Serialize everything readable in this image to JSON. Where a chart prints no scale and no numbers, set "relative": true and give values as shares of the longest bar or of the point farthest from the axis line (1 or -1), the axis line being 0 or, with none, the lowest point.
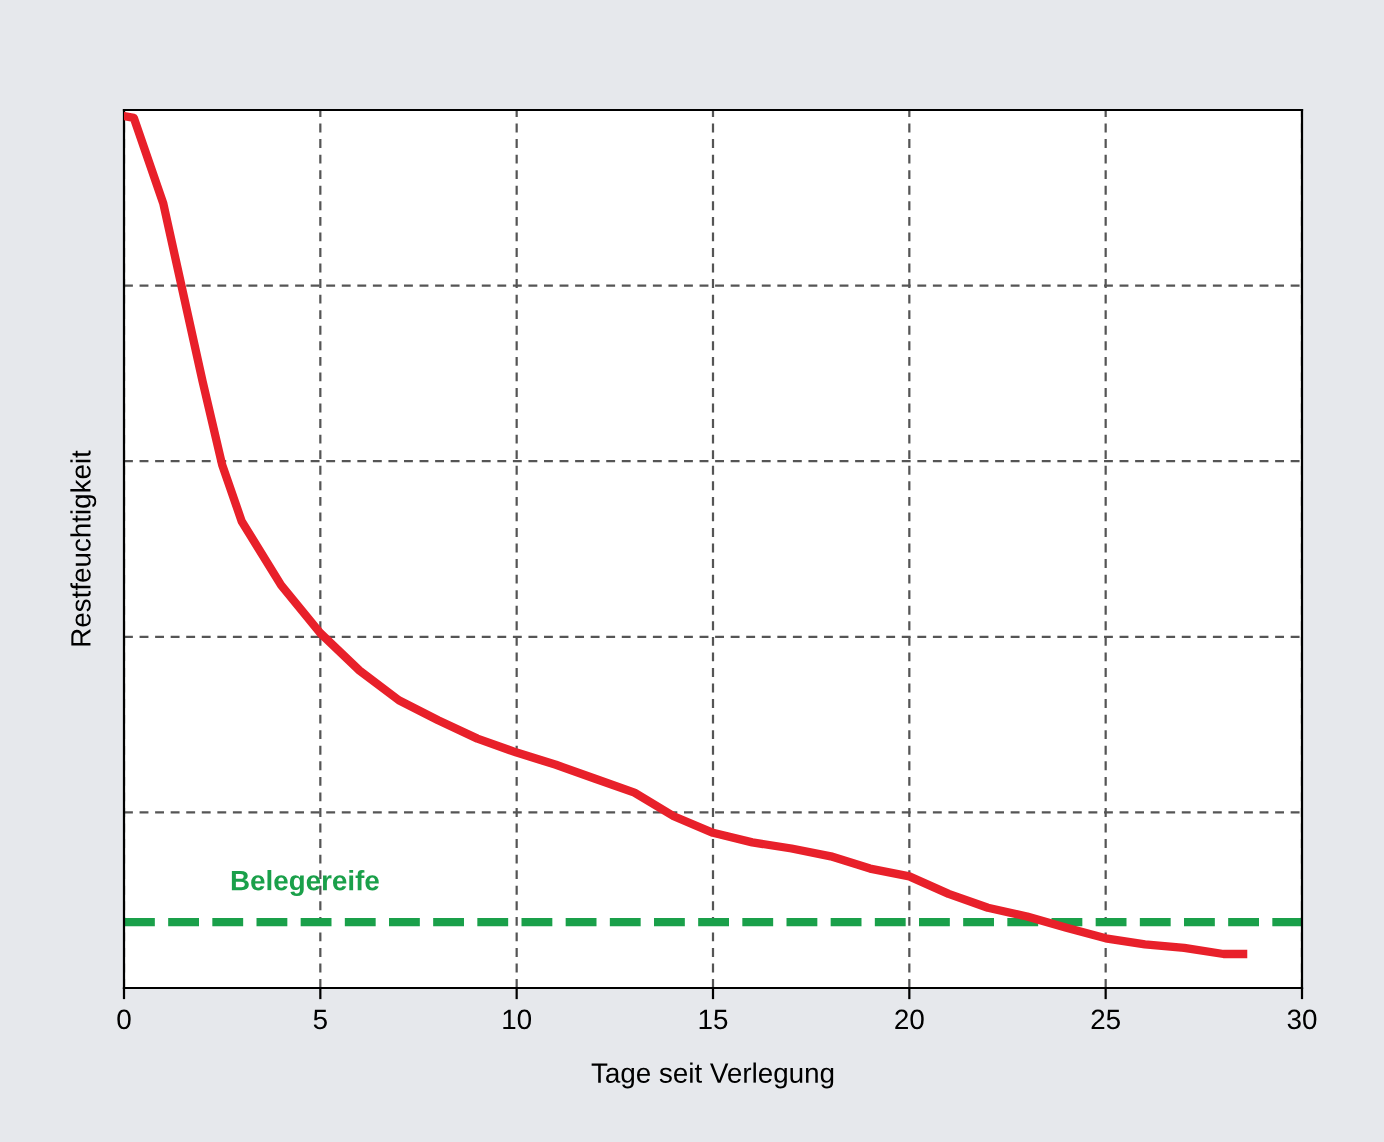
{
  "chart_data": {
    "type": "line",
    "xlabel": "Tage seit Verlegung",
    "ylabel": "Restfeuchtigkeit",
    "relative": true,
    "x": [
      0,
      0.25,
      1,
      2,
      2.5,
      3,
      4,
      5,
      6,
      7,
      8,
      9,
      10,
      11,
      12,
      13,
      14,
      15,
      16,
      17,
      18,
      19,
      20,
      21,
      22,
      23,
      24,
      25,
      26,
      27,
      28,
      28.5
    ],
    "series": [
      {
        "color": "#e8202a",
        "values": [
          1.0,
          0.998,
          0.9,
          0.696,
          0.6,
          0.535,
          0.462,
          0.407,
          0.364,
          0.33,
          0.307,
          0.286,
          0.27,
          0.256,
          0.24,
          0.224,
          0.197,
          0.178,
          0.167,
          0.16,
          0.151,
          0.137,
          0.128,
          0.108,
          0.092,
          0.082,
          0.069,
          0.057,
          0.05,
          0.046,
          0.039,
          0.039
        ]
      }
    ],
    "xlim": [
      0,
      30
    ],
    "xticks": [
      0,
      5,
      10,
      15,
      20,
      25,
      30
    ],
    "ref_lines": [
      {
        "axis": "y",
        "value": 0.0755,
        "label": "Belegereife",
        "color": "#1aa04a",
        "line_style": "dashed"
      }
    ],
    "grid": true,
    "tick_labels": "x",
    "marker": "none",
    "line_style": "solid"
  }
}
